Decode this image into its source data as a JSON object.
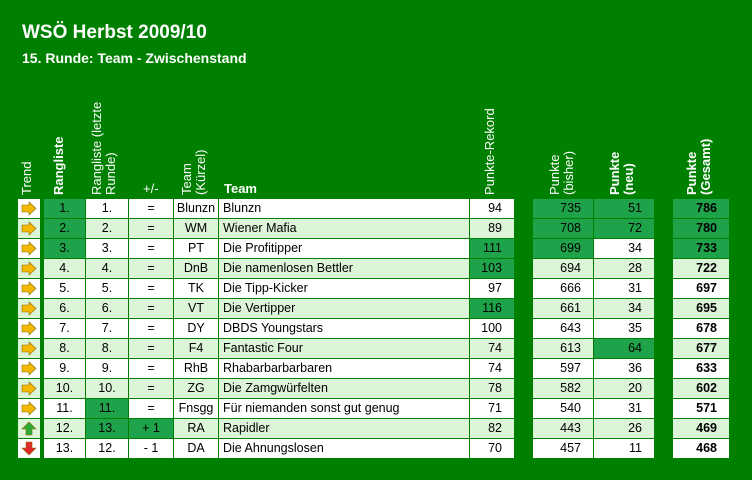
{
  "title": "WSÖ Herbst 2009/10",
  "subtitle": "15. Runde: Team - Zwischenstand",
  "headers": {
    "trend": "Trend",
    "rank": "Rangliste",
    "rank_prev": "Rangliste (letzte Runde)",
    "change": "+/-",
    "team_short": "Team (Kürzel)",
    "team": "Team",
    "record": "Punkte-Rekord",
    "points_prev": "Punkte (bisher)",
    "points_new": "Punkte (neu)",
    "points_total": "Punkte (Gesamt)"
  },
  "colors": {
    "background": "#008000",
    "highlight": "#1fa34a",
    "row_light": "#ffffff",
    "row_alt": "#dcf5d8",
    "arrow_same": "#f5b800",
    "arrow_up": "#2eaa36",
    "arrow_down": "#e02a2a"
  },
  "rows": [
    {
      "trend": "same",
      "rank": "1.",
      "prev": "1.",
      "chg": "=",
      "short": "Blunzn",
      "team": "Blunzn",
      "rec": "94",
      "bisher": "735",
      "neu": "51",
      "ges": "786"
    },
    {
      "trend": "same",
      "rank": "2.",
      "prev": "2.",
      "chg": "=",
      "short": "WM",
      "team": "Wiener Mafia",
      "rec": "89",
      "bisher": "708",
      "neu": "72",
      "ges": "780"
    },
    {
      "trend": "same",
      "rank": "3.",
      "prev": "3.",
      "chg": "=",
      "short": "PT",
      "team": "Die Profitipper",
      "rec": "111",
      "bisher": "699",
      "neu": "34",
      "ges": "733"
    },
    {
      "trend": "same",
      "rank": "4.",
      "prev": "4.",
      "chg": "=",
      "short": "DnB",
      "team": "Die namenlosen Bettler",
      "rec": "103",
      "bisher": "694",
      "neu": "28",
      "ges": "722"
    },
    {
      "trend": "same",
      "rank": "5.",
      "prev": "5.",
      "chg": "=",
      "short": "TK",
      "team": "Die Tipp-Kicker",
      "rec": "97",
      "bisher": "666",
      "neu": "31",
      "ges": "697"
    },
    {
      "trend": "same",
      "rank": "6.",
      "prev": "6.",
      "chg": "=",
      "short": "VT",
      "team": "Die Vertipper",
      "rec": "116",
      "bisher": "661",
      "neu": "34",
      "ges": "695"
    },
    {
      "trend": "same",
      "rank": "7.",
      "prev": "7.",
      "chg": "=",
      "short": "DY",
      "team": "DBDS Youngstars",
      "rec": "100",
      "bisher": "643",
      "neu": "35",
      "ges": "678"
    },
    {
      "trend": "same",
      "rank": "8.",
      "prev": "8.",
      "chg": "=",
      "short": "F4",
      "team": "Fantastic Four",
      "rec": "74",
      "bisher": "613",
      "neu": "64",
      "ges": "677"
    },
    {
      "trend": "same",
      "rank": "9.",
      "prev": "9.",
      "chg": "=",
      "short": "RhB",
      "team": "Rhabarbarbarbaren",
      "rec": "74",
      "bisher": "597",
      "neu": "36",
      "ges": "633"
    },
    {
      "trend": "same",
      "rank": "10.",
      "prev": "10.",
      "chg": "=",
      "short": "ZG",
      "team": "Die Zamgwürfelten",
      "rec": "78",
      "bisher": "582",
      "neu": "20",
      "ges": "602"
    },
    {
      "trend": "same",
      "rank": "11.",
      "prev": "11.",
      "chg": "=",
      "short": "Fnsgg",
      "team": "Für niemanden sonst gut genug",
      "rec": "71",
      "bisher": "540",
      "neu": "31",
      "ges": "571"
    },
    {
      "trend": "up",
      "rank": "12.",
      "prev": "13.",
      "chg": "+ 1",
      "short": "RA",
      "team": "Rapidler",
      "rec": "82",
      "bisher": "443",
      "neu": "26",
      "ges": "469"
    },
    {
      "trend": "down",
      "rank": "13.",
      "prev": "12.",
      "chg": "- 1",
      "short": "DA",
      "team": "Die Ahnungslosen",
      "rec": "70",
      "bisher": "457",
      "neu": "11",
      "ges": "468"
    }
  ]
}
